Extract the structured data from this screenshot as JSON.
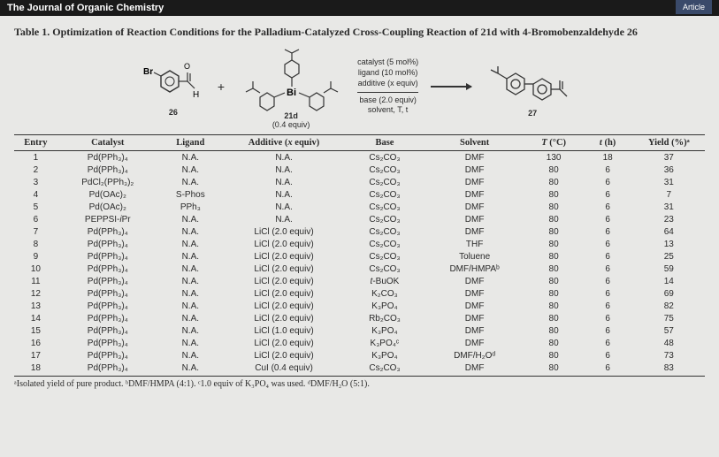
{
  "journal_header": "The Journal of Organic Chemistry",
  "article_badge": "Article",
  "table_title": "Table 1. Optimization of Reaction Conditions for the Palladium-Catalyzed Cross-Coupling Reaction of 21d with 4-Bromobenzaldehyde 26",
  "scheme": {
    "sm1_label_top": "Br",
    "sm1_num": "26",
    "plus": "+",
    "reagent_num": "21d",
    "reagent_sub": "(0.4 equiv)",
    "conditions_top1": "catalyst (5 mol%)",
    "conditions_top2": "ligand (10 mol%)",
    "conditions_top3": "additive (x equiv)",
    "conditions_bot1": "base (2.0 equiv)",
    "conditions_bot2": "solvent, T, t",
    "product_num": "27"
  },
  "columns": [
    "Entry",
    "Catalyst",
    "Ligand",
    "Additive (x equiv)",
    "Base",
    "Solvent",
    "T (°C)",
    "t (h)",
    "Yield (%)ᵃ"
  ],
  "rows": [
    [
      "1",
      "Pd(PPh₃)₄",
      "N.A.",
      "N.A.",
      "Cs₂CO₃",
      "DMF",
      "130",
      "18",
      "37"
    ],
    [
      "2",
      "Pd(PPh₃)₄",
      "N.A.",
      "N.A.",
      "Cs₂CO₃",
      "DMF",
      "80",
      "6",
      "36"
    ],
    [
      "3",
      "PdCl₂(PPh₃)₂",
      "N.A.",
      "N.A.",
      "Cs₂CO₃",
      "DMF",
      "80",
      "6",
      "31"
    ],
    [
      "4",
      "Pd(OAc)₂",
      "S-Phos",
      "N.A.",
      "Cs₂CO₃",
      "DMF",
      "80",
      "6",
      "7"
    ],
    [
      "5",
      "Pd(OAc)₂",
      "PPh₃",
      "N.A.",
      "Cs₂CO₃",
      "DMF",
      "80",
      "6",
      "31"
    ],
    [
      "6",
      "PEPPSI-iPr",
      "N.A.",
      "N.A.",
      "Cs₂CO₃",
      "DMF",
      "80",
      "6",
      "23"
    ],
    [
      "7",
      "Pd(PPh₃)₄",
      "N.A.",
      "LiCl (2.0 equiv)",
      "Cs₂CO₃",
      "DMF",
      "80",
      "6",
      "64"
    ],
    [
      "8",
      "Pd(PPh₃)₄",
      "N.A.",
      "LiCl (2.0 equiv)",
      "Cs₂CO₃",
      "THF",
      "80",
      "6",
      "13"
    ],
    [
      "9",
      "Pd(PPh₃)₄",
      "N.A.",
      "LiCl (2.0 equiv)",
      "Cs₂CO₃",
      "Toluene",
      "80",
      "6",
      "25"
    ],
    [
      "10",
      "Pd(PPh₃)₄",
      "N.A.",
      "LiCl (2.0 equiv)",
      "Cs₂CO₃",
      "DMF/HMPAᵇ",
      "80",
      "6",
      "59"
    ],
    [
      "11",
      "Pd(PPh₃)₄",
      "N.A.",
      "LiCl (2.0 equiv)",
      "t-BuOK",
      "DMF",
      "80",
      "6",
      "14"
    ],
    [
      "12",
      "Pd(PPh₃)₄",
      "N.A.",
      "LiCl (2.0 equiv)",
      "K₂CO₃",
      "DMF",
      "80",
      "6",
      "69"
    ],
    [
      "13",
      "Pd(PPh₃)₄",
      "N.A.",
      "LiCl (2.0 equiv)",
      "K₃PO₄",
      "DMF",
      "80",
      "6",
      "82"
    ],
    [
      "14",
      "Pd(PPh₃)₄",
      "N.A.",
      "LiCl (2.0 equiv)",
      "Rb₂CO₃",
      "DMF",
      "80",
      "6",
      "75"
    ],
    [
      "15",
      "Pd(PPh₃)₄",
      "N.A.",
      "LiCl (1.0 equiv)",
      "K₃PO₄",
      "DMF",
      "80",
      "6",
      "57"
    ],
    [
      "16",
      "Pd(PPh₃)₄",
      "N.A.",
      "LiCl (2.0 equiv)",
      "K₃PO₄ᶜ",
      "DMF",
      "80",
      "6",
      "48"
    ],
    [
      "17",
      "Pd(PPh₃)₄",
      "N.A.",
      "LiCl (2.0 equiv)",
      "K₃PO₄",
      "DMF/H₂Oᵈ",
      "80",
      "6",
      "73"
    ],
    [
      "18",
      "Pd(PPh₃)₄",
      "N.A.",
      "CuI (0.4 equiv)",
      "Cs₂CO₃",
      "DMF",
      "80",
      "6",
      "83"
    ]
  ],
  "footnote": "ᵃIsolated yield of pure product. ᵇDMF/HMPA (4:1). ᶜ1.0 equiv of K₃PO₄ was used. ᵈDMF/H₂O (5:1).",
  "colors": {
    "page_bg": "#e8e8e6",
    "header_bg": "#1a1a1a",
    "badge_bg": "#3a4a6a",
    "rule": "#333333"
  },
  "col_widths_pct": [
    6,
    14,
    9,
    17,
    11,
    14,
    8,
    7,
    10
  ]
}
